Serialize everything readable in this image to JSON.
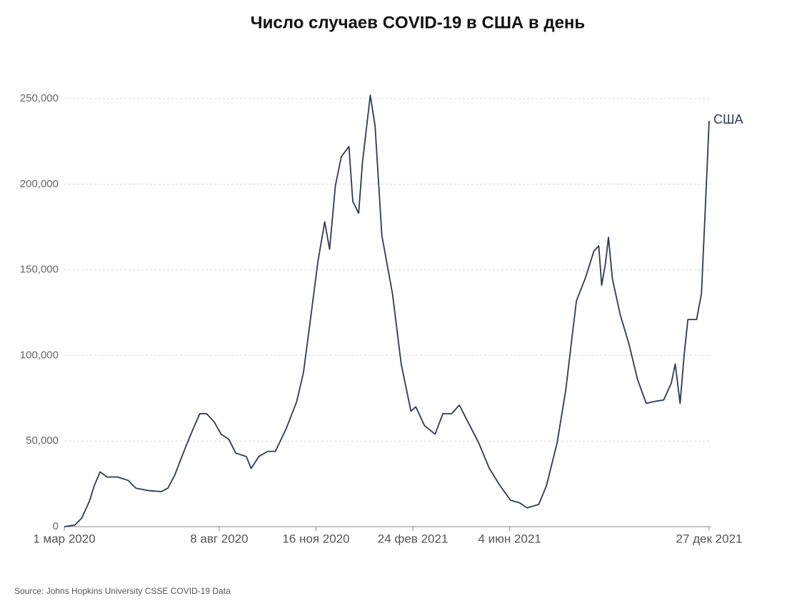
{
  "chart_data": {
    "type": "line",
    "title": "Число случаев COVID-19 в США в день",
    "source": "Source: Johns Hopkins University CSSE COVID-19 Data",
    "x": [
      "2020-03-01",
      "2020-03-12",
      "2020-03-19",
      "2020-03-27",
      "2020-04-01",
      "2020-04-07",
      "2020-04-14",
      "2020-04-25",
      "2020-05-06",
      "2020-05-14",
      "2020-05-28",
      "2020-06-09",
      "2020-06-16",
      "2020-06-23",
      "2020-07-03",
      "2020-07-12",
      "2020-07-19",
      "2020-07-26",
      "2020-08-03",
      "2020-08-10",
      "2020-08-18",
      "2020-08-25",
      "2020-09-05",
      "2020-09-10",
      "2020-09-18",
      "2020-09-27",
      "2020-10-05",
      "2020-10-16",
      "2020-10-27",
      "2020-11-03",
      "2020-11-10",
      "2020-11-18",
      "2020-11-25",
      "2020-11-30",
      "2020-12-06",
      "2020-12-12",
      "2020-12-20",
      "2020-12-24",
      "2020-12-30",
      "2021-01-03",
      "2021-01-11",
      "2021-01-16",
      "2021-01-23",
      "2021-02-03",
      "2021-02-12",
      "2021-02-22",
      "2021-02-27",
      "2021-03-08",
      "2021-03-19",
      "2021-03-27",
      "2021-04-05",
      "2021-04-13",
      "2021-04-22",
      "2021-05-03",
      "2021-05-14",
      "2021-05-25",
      "2021-06-05",
      "2021-06-14",
      "2021-06-22",
      "2021-07-04",
      "2021-07-12",
      "2021-07-23",
      "2021-08-01",
      "2021-08-07",
      "2021-08-12",
      "2021-08-21",
      "2021-08-30",
      "2021-09-04",
      "2021-09-07",
      "2021-09-11",
      "2021-09-14",
      "2021-09-18",
      "2021-09-26",
      "2021-10-05",
      "2021-10-14",
      "2021-10-23",
      "2021-10-30",
      "2021-11-10",
      "2021-11-18",
      "2021-11-22",
      "2021-11-27",
      "2021-12-01",
      "2021-12-05",
      "2021-12-14",
      "2021-12-19",
      "2021-12-23",
      "2021-12-27"
    ],
    "series": [
      {
        "name": "США",
        "color": "#2b3a55",
        "values": [
          0,
          1000,
          5000,
          15000,
          24000,
          32000,
          29000,
          29000,
          27000,
          22500,
          21000,
          20500,
          22500,
          30000,
          44600,
          57000,
          66000,
          66000,
          61000,
          54000,
          51000,
          43000,
          41000,
          34000,
          41000,
          44000,
          44000,
          57000,
          73000,
          90000,
          120000,
          155000,
          178000,
          162000,
          199000,
          216000,
          222000,
          190000,
          183000,
          213000,
          252000,
          234000,
          170000,
          136000,
          95000,
          67500,
          70000,
          59000,
          54000,
          66000,
          66000,
          71000,
          61000,
          49000,
          34000,
          24000,
          15400,
          14000,
          11000,
          13000,
          24000,
          49000,
          80000,
          109000,
          132000,
          145000,
          161000,
          164000,
          141000,
          154000,
          169000,
          145000,
          124000,
          107000,
          86000,
          72000,
          73000,
          74000,
          84000,
          95000,
          72000,
          99000,
          121000,
          121000,
          136000,
          186000,
          237000
        ]
      }
    ],
    "xlim": [
      "2020-03-01",
      "2021-12-27"
    ],
    "xticks": [
      {
        "value": "2020-03-01",
        "label": "1 мар 2020"
      },
      {
        "value": "2020-08-08",
        "label": "8 авг 2020"
      },
      {
        "value": "2020-11-16",
        "label": "16 ноя 2020"
      },
      {
        "value": "2021-02-24",
        "label": "24 фев 2021"
      },
      {
        "value": "2021-06-04",
        "label": "4 июн 2021"
      },
      {
        "value": "2021-12-27",
        "label": "27 дек 2021"
      }
    ],
    "ylim": [
      0,
      250000
    ],
    "yticks": [
      0,
      {
        "value": 50000,
        "label": "50,000"
      },
      {
        "value": 100000,
        "label": "100,000"
      },
      {
        "value": 150000,
        "label": "150,000"
      },
      {
        "value": 200000,
        "label": "200,000"
      },
      {
        "value": 250000,
        "label": "250,000"
      }
    ],
    "grid": true
  }
}
